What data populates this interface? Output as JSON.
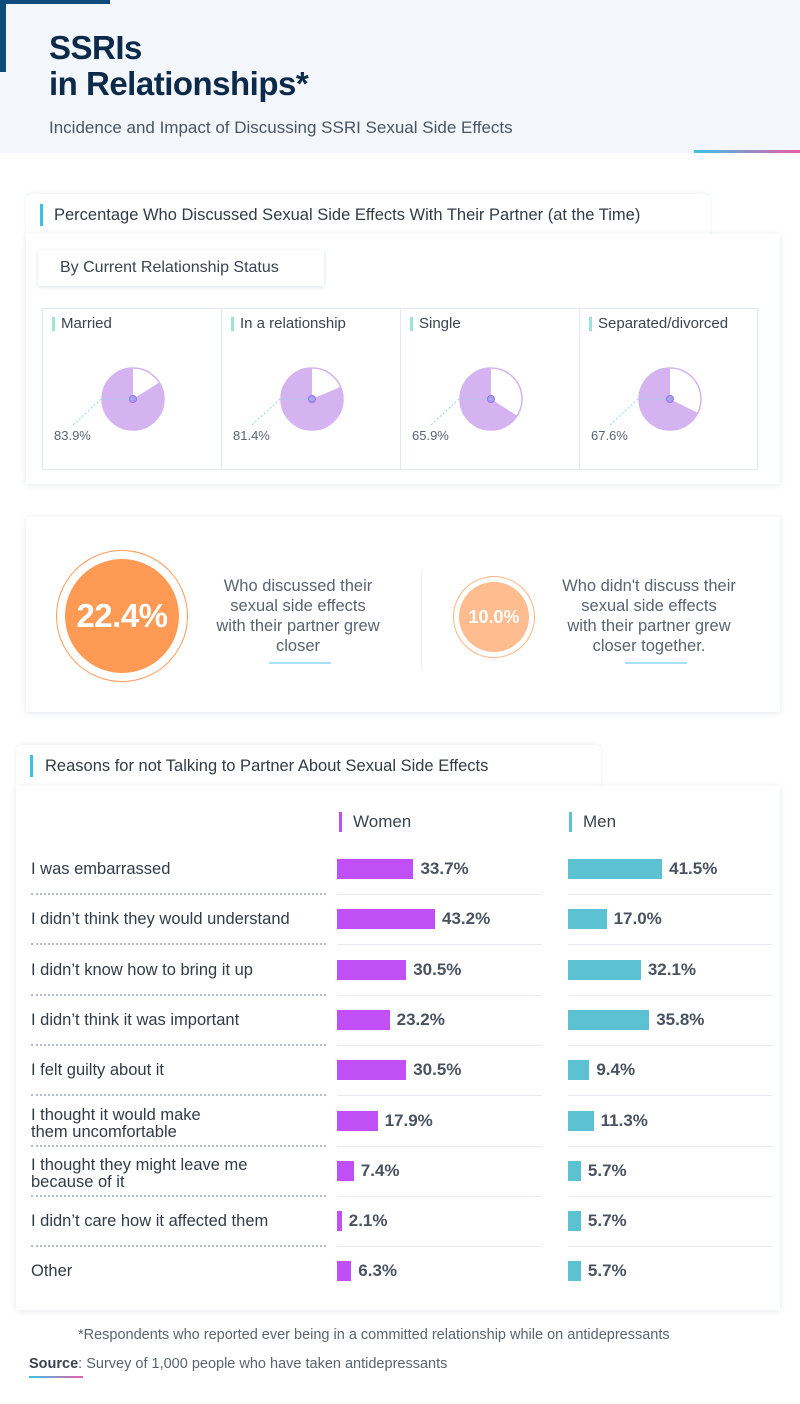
{
  "header": {
    "title_line1": "SSRIs",
    "title_line2": "in Relationships*",
    "subtitle": "Incidence and Impact of Discussing SSRI Sexual Side Effects"
  },
  "colors": {
    "navy": "#0c2a4a",
    "accent_blue": "#3ac0e8",
    "pie_fill": "#d4b3f0",
    "orange": "#ff9a55",
    "light_orange": "#ffbc8e",
    "women": "#c050f5",
    "men": "#5cc1d3"
  },
  "discussed_section": {
    "title": "Percentage Who Discussed Sexual Side Effects With Their Partner (at the Time)",
    "subtitle": "By Current Relationship Status"
  },
  "stats": {
    "discussed_value": "22.4%",
    "discussed_text_lines": [
      "Who discussed their",
      "sexual side effects",
      "with their partner grew",
      "closer"
    ],
    "not_discussed_value": "10.0%",
    "not_discussed_text_lines": [
      "Who didn't discuss their",
      "sexual side effects",
      "with their partner grew",
      "closer together."
    ]
  },
  "reasons_section": {
    "title": "Reasons for not Talking to Partner About Sexual Side Effects"
  },
  "footnote": "*Respondents who reported ever being in a committed relationship while on antidepressants",
  "source": {
    "label": "Source",
    "text": ": Survey of 1,000 people who have taken antidepressants"
  },
  "chart_data": [
    {
      "type": "pie",
      "title": "Percentage Who Discussed Sexual Side Effects With Their Partner (at the Time) — By Current Relationship Status",
      "categories": [
        "Married",
        "In a relationship",
        "Single",
        "Separated/divorced"
      ],
      "values": [
        83.9,
        81.4,
        65.9,
        67.6
      ],
      "labels": [
        "83.9%",
        "81.4%",
        "65.9%",
        "67.6%"
      ],
      "unit": "%"
    },
    {
      "type": "bar",
      "orientation": "horizontal",
      "title": "Reasons for not Talking to Partner About Sexual Side Effects",
      "categories": [
        "I was embarrassed",
        "I didn’t think they would understand",
        "I didn’t know how to bring it up",
        "I didn’t think it was important",
        "I felt guilty about it",
        "I thought it would make them uncomfortable",
        "I thought they might leave me because of it",
        "I didn’t care how it affected them",
        "Other"
      ],
      "category_lines": [
        [
          "I was embarrassed"
        ],
        [
          "I didn’t think they would understand"
        ],
        [
          "I didn’t know how to bring it up"
        ],
        [
          "I didn’t think it was important"
        ],
        [
          "I felt guilty about it"
        ],
        [
          "I thought it would make",
          "them uncomfortable"
        ],
        [
          "I thought they might leave me",
          "because of it"
        ],
        [
          "I didn’t care how it affected them"
        ],
        [
          "Other"
        ]
      ],
      "series": [
        {
          "name": "Women",
          "values": [
            33.7,
            43.2,
            30.5,
            23.2,
            30.5,
            17.9,
            7.4,
            2.1,
            6.3
          ]
        },
        {
          "name": "Men",
          "values": [
            41.5,
            17.0,
            32.1,
            35.8,
            9.4,
            11.3,
            5.7,
            5.7,
            5.7
          ]
        }
      ],
      "unit": "%",
      "xlim": [
        0,
        50
      ]
    }
  ]
}
